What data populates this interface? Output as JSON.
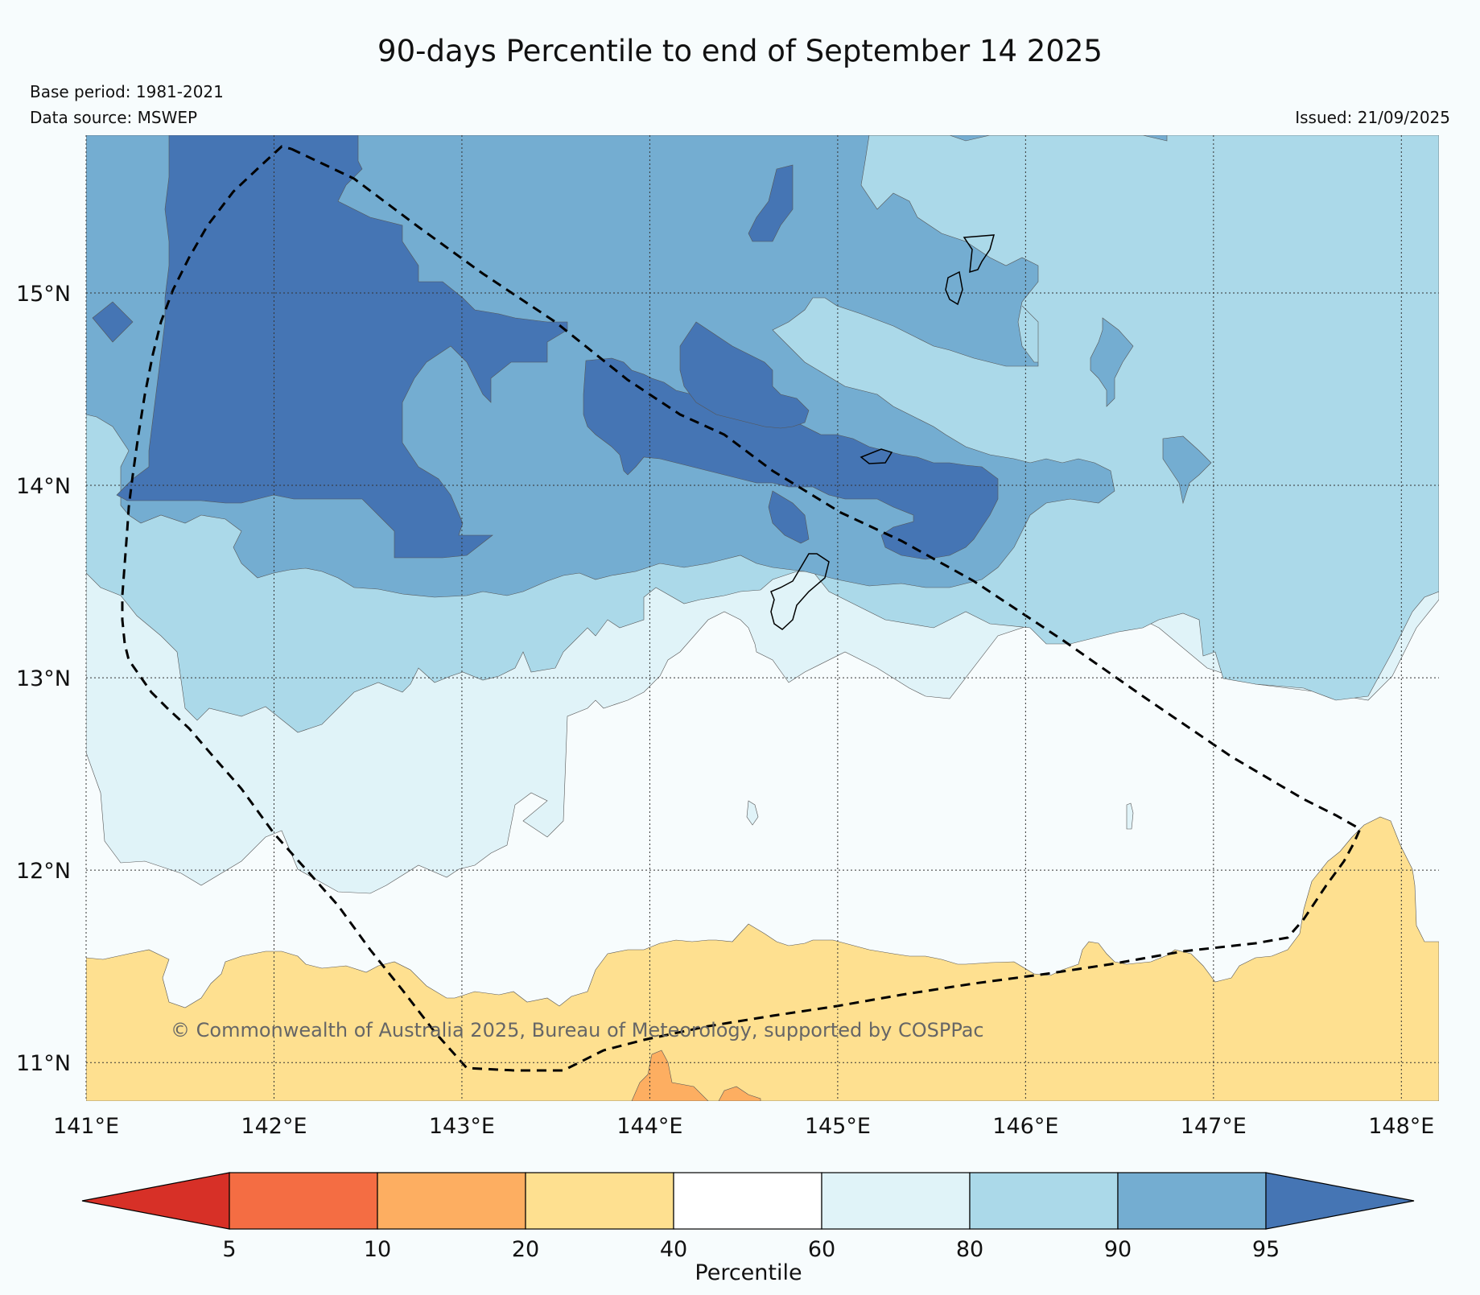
{
  "header": {
    "title": "90-days Percentile to end of September 14 2025",
    "base_period": "Base period: 1981-2021",
    "data_source": "Data source: MSWEP",
    "issued": "Issued: 21/09/2025"
  },
  "map": {
    "lon_range": [
      141,
      148.2
    ],
    "lat_range": [
      10.8,
      15.82
    ],
    "lon_ticks": [
      141,
      142,
      143,
      144,
      145,
      146,
      147,
      148
    ],
    "lat_ticks": [
      11,
      12,
      13,
      14,
      15
    ],
    "lon_tick_labels": [
      "141°E",
      "142°E",
      "143°E",
      "144°E",
      "145°E",
      "146°E",
      "147°E",
      "148°E"
    ],
    "lat_tick_labels": [
      "11°N",
      "12°N",
      "13°N",
      "14°N",
      "15°N"
    ],
    "copyright": "© Commonwealth of Australia 2025, Bureau of Meteorology, supported by COSPPac"
  },
  "legend": {
    "label": "Percentile",
    "ticks": [
      "5",
      "10",
      "20",
      "40",
      "60",
      "80",
      "90",
      "95"
    ],
    "colors": [
      "#d73027",
      "#f46d43",
      "#fdae61",
      "#fee090",
      "#ffffff",
      "#e0f3f8",
      "#abd9e9",
      "#74add1",
      "#4575b4"
    ]
  },
  "colors": {
    "background": "#f7fcfd",
    "pct_20_40": "#fee090",
    "pct_10_20": "#fdae61",
    "pct_40_60": "#f7fcfd",
    "pct_60_80": "#e0f3f8",
    "pct_80_90": "#abd9e9",
    "pct_90_95": "#74add1",
    "pct_95_plus": "#4575b4"
  }
}
